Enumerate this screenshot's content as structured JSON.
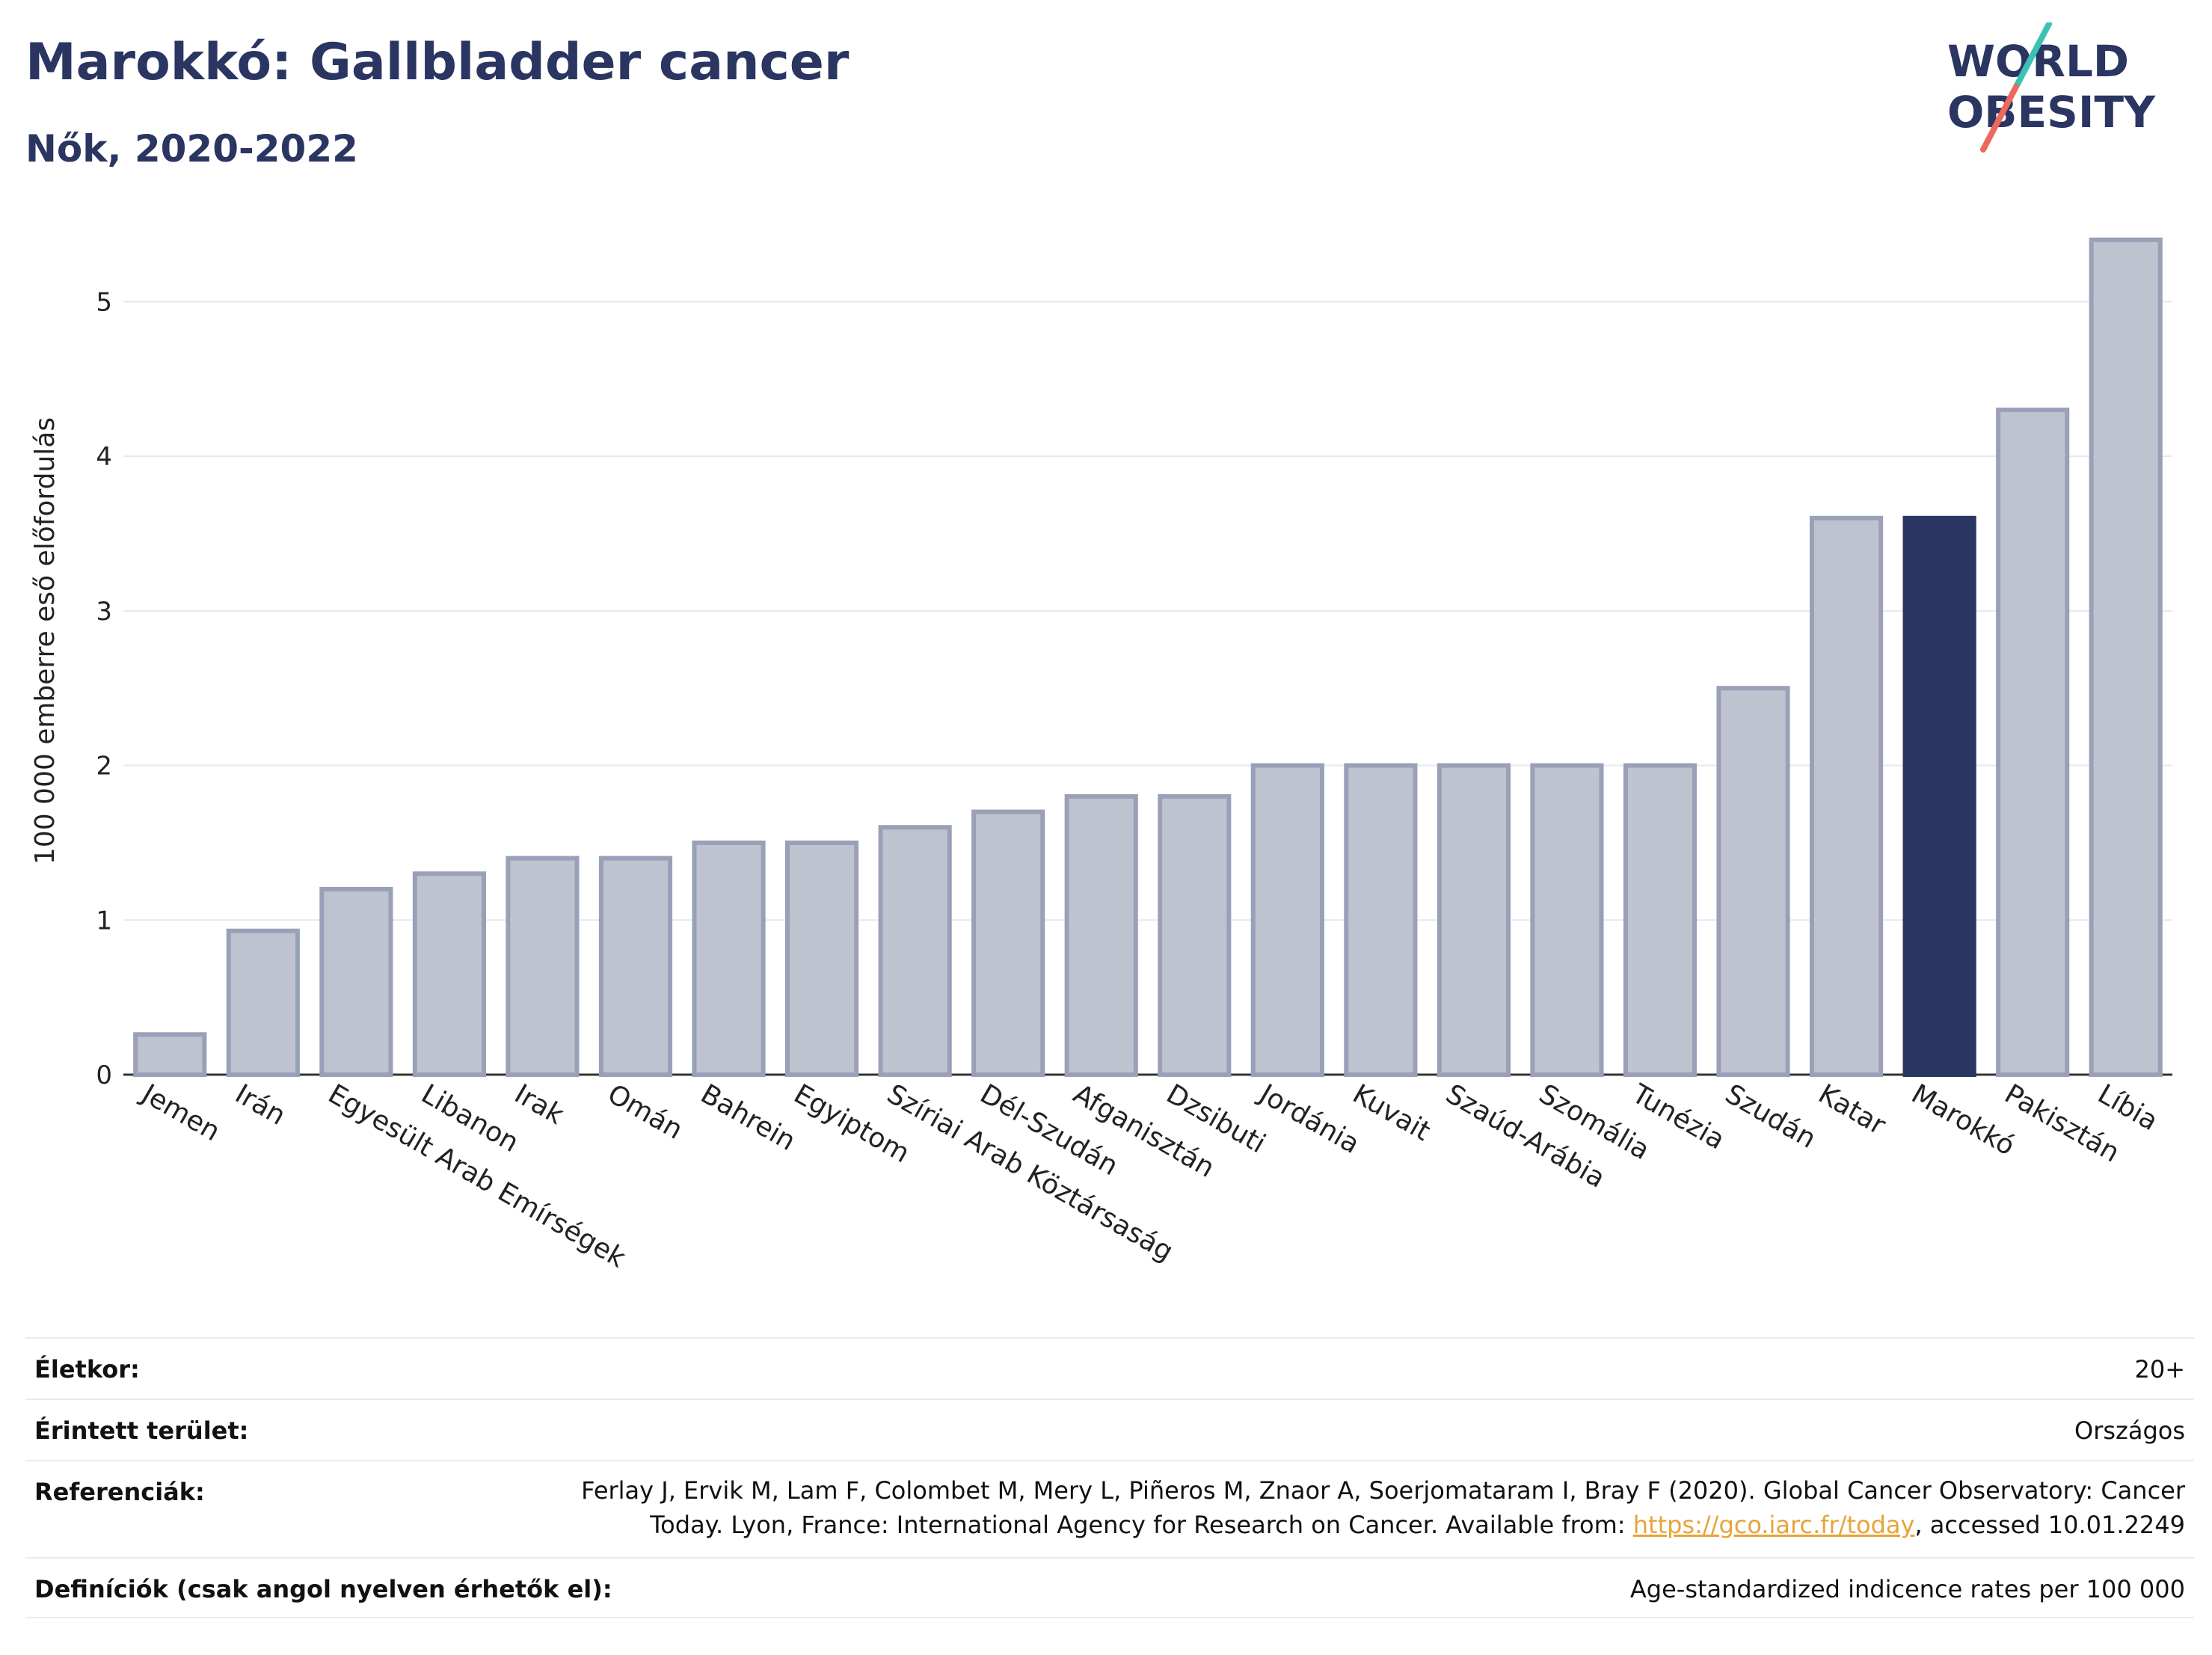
{
  "header": {
    "title": "Marokkó: Gallbladder cancer",
    "subtitle": "Nők, 2020-2022"
  },
  "logo": {
    "line1": "WORLD",
    "line2": "OBESITY",
    "colors": {
      "text": "#2a3561",
      "teal": "#3cc1b5",
      "coral": "#ec6a5c"
    }
  },
  "chart_data": {
    "type": "bar",
    "ylabel": "100 000 emberre eső előfordulás",
    "xlabel": "",
    "ylim": [
      0,
      5.5
    ],
    "yticks": [
      0,
      1,
      2,
      3,
      4,
      5
    ],
    "grid": true,
    "highlight": "Marokkó",
    "colors": {
      "bar": "#bfc3d0",
      "bar_edge": "#9aa0b8",
      "highlight": "#2a3561",
      "grid": "#e6e8ee"
    },
    "categories": [
      "Jemen",
      "Irán",
      "Egyesült Arab Emírségek",
      "Libanon",
      "Irak",
      "Omán",
      "Bahrein",
      "Egyiptom",
      "Szíriai Arab Köztársaság",
      "Dél-Szudán",
      "Afganisztán",
      "Dzsibuti",
      "Jordánia",
      "Kuvait",
      "Szaúd-Arábia",
      "Szomália",
      "Tunézia",
      "Szudán",
      "Katar",
      "Marokkó",
      "Pakisztán",
      "Líbia"
    ],
    "values": [
      0.26,
      0.93,
      1.2,
      1.3,
      1.4,
      1.4,
      1.5,
      1.5,
      1.6,
      1.7,
      1.8,
      1.8,
      2.0,
      2.0,
      2.0,
      2.0,
      2.0,
      2.5,
      3.6,
      3.6,
      4.3,
      5.4
    ]
  },
  "info": {
    "rows": [
      {
        "label": "Életkor:",
        "value": "20+"
      },
      {
        "label": "Érintett terület:",
        "value": "Országos"
      },
      {
        "label": "Referenciák:",
        "value_line1": "Ferlay J, Ervik M, Lam F, Colombet M, Mery L, Piñeros M, Znaor A, Soerjomataram I, Bray F (2020). Global Cancer Observatory: Cancer",
        "value_line2_pre": "Today. Lyon, France: International Agency for Research on Cancer. Available from: ",
        "value_link": "https://gco.iarc.fr/today",
        "value_line2_post": ", accessed 10.01.2249"
      },
      {
        "label": "Definíciók (csak angol nyelven érhetők el):",
        "value": "Age-standardized indicence rates per 100 000"
      }
    ]
  }
}
